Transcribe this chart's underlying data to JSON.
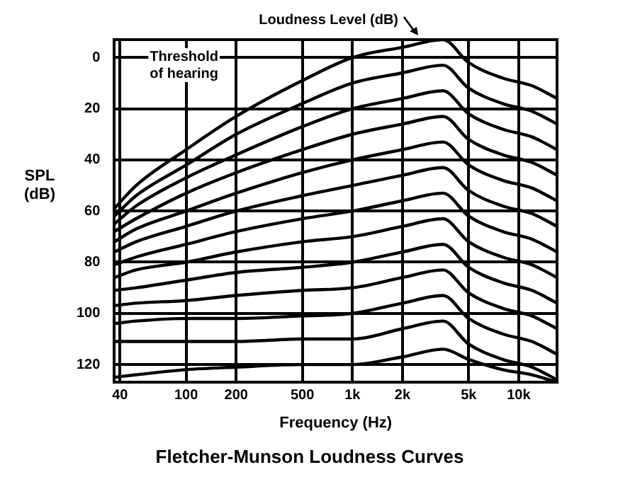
{
  "chart_data": {
    "type": "line",
    "title": "Fletcher-Munson Loudness Curves",
    "xlabel": "Frequency (Hz)",
    "ylabel": "SPL (dB)",
    "annotations": [
      "Loudness Level (dB)",
      "Threshold of hearing"
    ],
    "x": [
      37,
      50,
      100,
      200,
      500,
      1000,
      2000,
      3500,
      5000,
      8000,
      12000,
      17000
    ],
    "series": [
      {
        "color": "#000000",
        "values": [
          59,
          50,
          36,
          23,
          9,
          0,
          -4,
          -7,
          2,
          8,
          11,
          16
        ]
      },
      {
        "color": "#000000",
        "values": [
          62,
          54,
          42,
          30,
          18,
          10,
          6,
          3,
          12,
          18,
          21,
          26
        ]
      },
      {
        "color": "#000000",
        "values": [
          65,
          58,
          47,
          38,
          27,
          20,
          16,
          13,
          22,
          28,
          31,
          36
        ]
      },
      {
        "color": "#000000",
        "values": [
          68,
          63,
          53,
          45,
          36,
          30,
          26,
          23,
          32,
          38,
          41,
          46
        ]
      },
      {
        "color": "#000000",
        "values": [
          72,
          67,
          60,
          53,
          45,
          40,
          36,
          33,
          42,
          48,
          51,
          56
        ]
      },
      {
        "color": "#000000",
        "values": [
          76,
          72,
          66,
          60,
          54,
          50,
          46,
          43,
          52,
          58,
          61,
          66
        ]
      },
      {
        "color": "#000000",
        "values": [
          81,
          78,
          73,
          68,
          63,
          60,
          56,
          53,
          62,
          68,
          71,
          76
        ]
      },
      {
        "color": "#000000",
        "values": [
          86,
          83,
          80,
          76,
          72,
          70,
          66,
          63,
          72,
          78,
          81,
          86
        ]
      },
      {
        "color": "#000000",
        "values": [
          91,
          90,
          87,
          84,
          82,
          80,
          76,
          73,
          82,
          88,
          91,
          96
        ]
      },
      {
        "color": "#000000",
        "values": [
          97,
          96,
          95,
          93,
          91,
          90,
          86,
          83,
          92,
          98,
          101,
          106
        ]
      },
      {
        "color": "#000000",
        "values": [
          104,
          103,
          102,
          102,
          101,
          100,
          96,
          93,
          102,
          108,
          111,
          116
        ]
      },
      {
        "color": "#000000",
        "values": [
          111,
          111,
          111,
          111,
          110,
          110,
          106,
          103,
          112,
          118,
          121,
          126
        ]
      },
      {
        "color": "#000000",
        "values": [
          125,
          124,
          122,
          121,
          120,
          120,
          117,
          114,
          118,
          122,
          124,
          127
        ]
      }
    ],
    "log": "x",
    "xlim": [
      37,
      17000
    ],
    "xticks": [
      40,
      100,
      200,
      500,
      {
        "value": 1000,
        "label": "1k"
      },
      {
        "value": 2000,
        "label": "2k"
      },
      {
        "value": 5000,
        "label": "5k"
      },
      {
        "value": 10000,
        "label": "10k"
      }
    ],
    "ylim": [
      127,
      -7
    ],
    "yticks": [
      0,
      20,
      40,
      60,
      80,
      100,
      120
    ],
    "grid": true,
    "legend": false,
    "marker": "none",
    "line_style": "solid"
  }
}
